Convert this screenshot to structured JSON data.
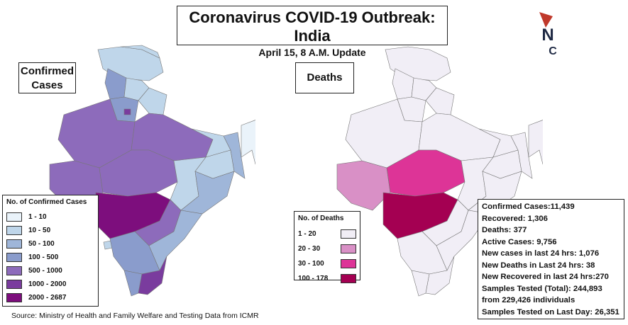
{
  "title": "Coronavirus COVID-19 Outbreak: India",
  "subtitle": "April 15, 8 A.M. Update",
  "logo": {
    "letter_top": "N",
    "letter_bottom": "C",
    "colors": {
      "n": "#1f2a44",
      "c": "#1f2a44",
      "flag": "#c0392b"
    }
  },
  "maps": {
    "confirmed_label": "Confirmed Cases",
    "deaths_label": "Deaths"
  },
  "legend_confirmed": {
    "title": "No. of Confirmed Cases",
    "items": [
      {
        "label": "1 - 10",
        "color": "#eaf3fa"
      },
      {
        "label": "10 - 50",
        "color": "#bfd6ea"
      },
      {
        "label": "50 - 100",
        "color": "#9fb6d9"
      },
      {
        "label": "100 - 500",
        "color": "#8a9ccc"
      },
      {
        "label": "500 - 1000",
        "color": "#8d6bbb"
      },
      {
        "label": "1000 - 2000",
        "color": "#7a3c9e"
      },
      {
        "label": "2000 - 2687",
        "color": "#7d0e7d"
      }
    ]
  },
  "legend_deaths": {
    "title": "No. of Deaths",
    "items": [
      {
        "label": "1 - 20",
        "color": "#f1eef6"
      },
      {
        "label": "20 - 30",
        "color": "#d990c6"
      },
      {
        "label": "30 - 100",
        "color": "#dd3497"
      },
      {
        "label": "100 - 178",
        "color": "#a40052"
      }
    ]
  },
  "stats": [
    "Confirmed Cases:11,439",
    "Recovered: 1,306",
    "Deaths: 377",
    "Active Cases: 9,756",
    "New cases in last 24 hrs: 1,076",
    "New Deaths in Last 24 hrs: 38",
    "New Recovered in last 24 hrs:270",
    "Samples Tested (Total):  244,893",
    "from 229,426 individuals",
    "Samples Tested on Last Day: 26,351"
  ],
  "source": "Source: Ministry of Health and Family Welfare and Testing Data from ICMR"
}
